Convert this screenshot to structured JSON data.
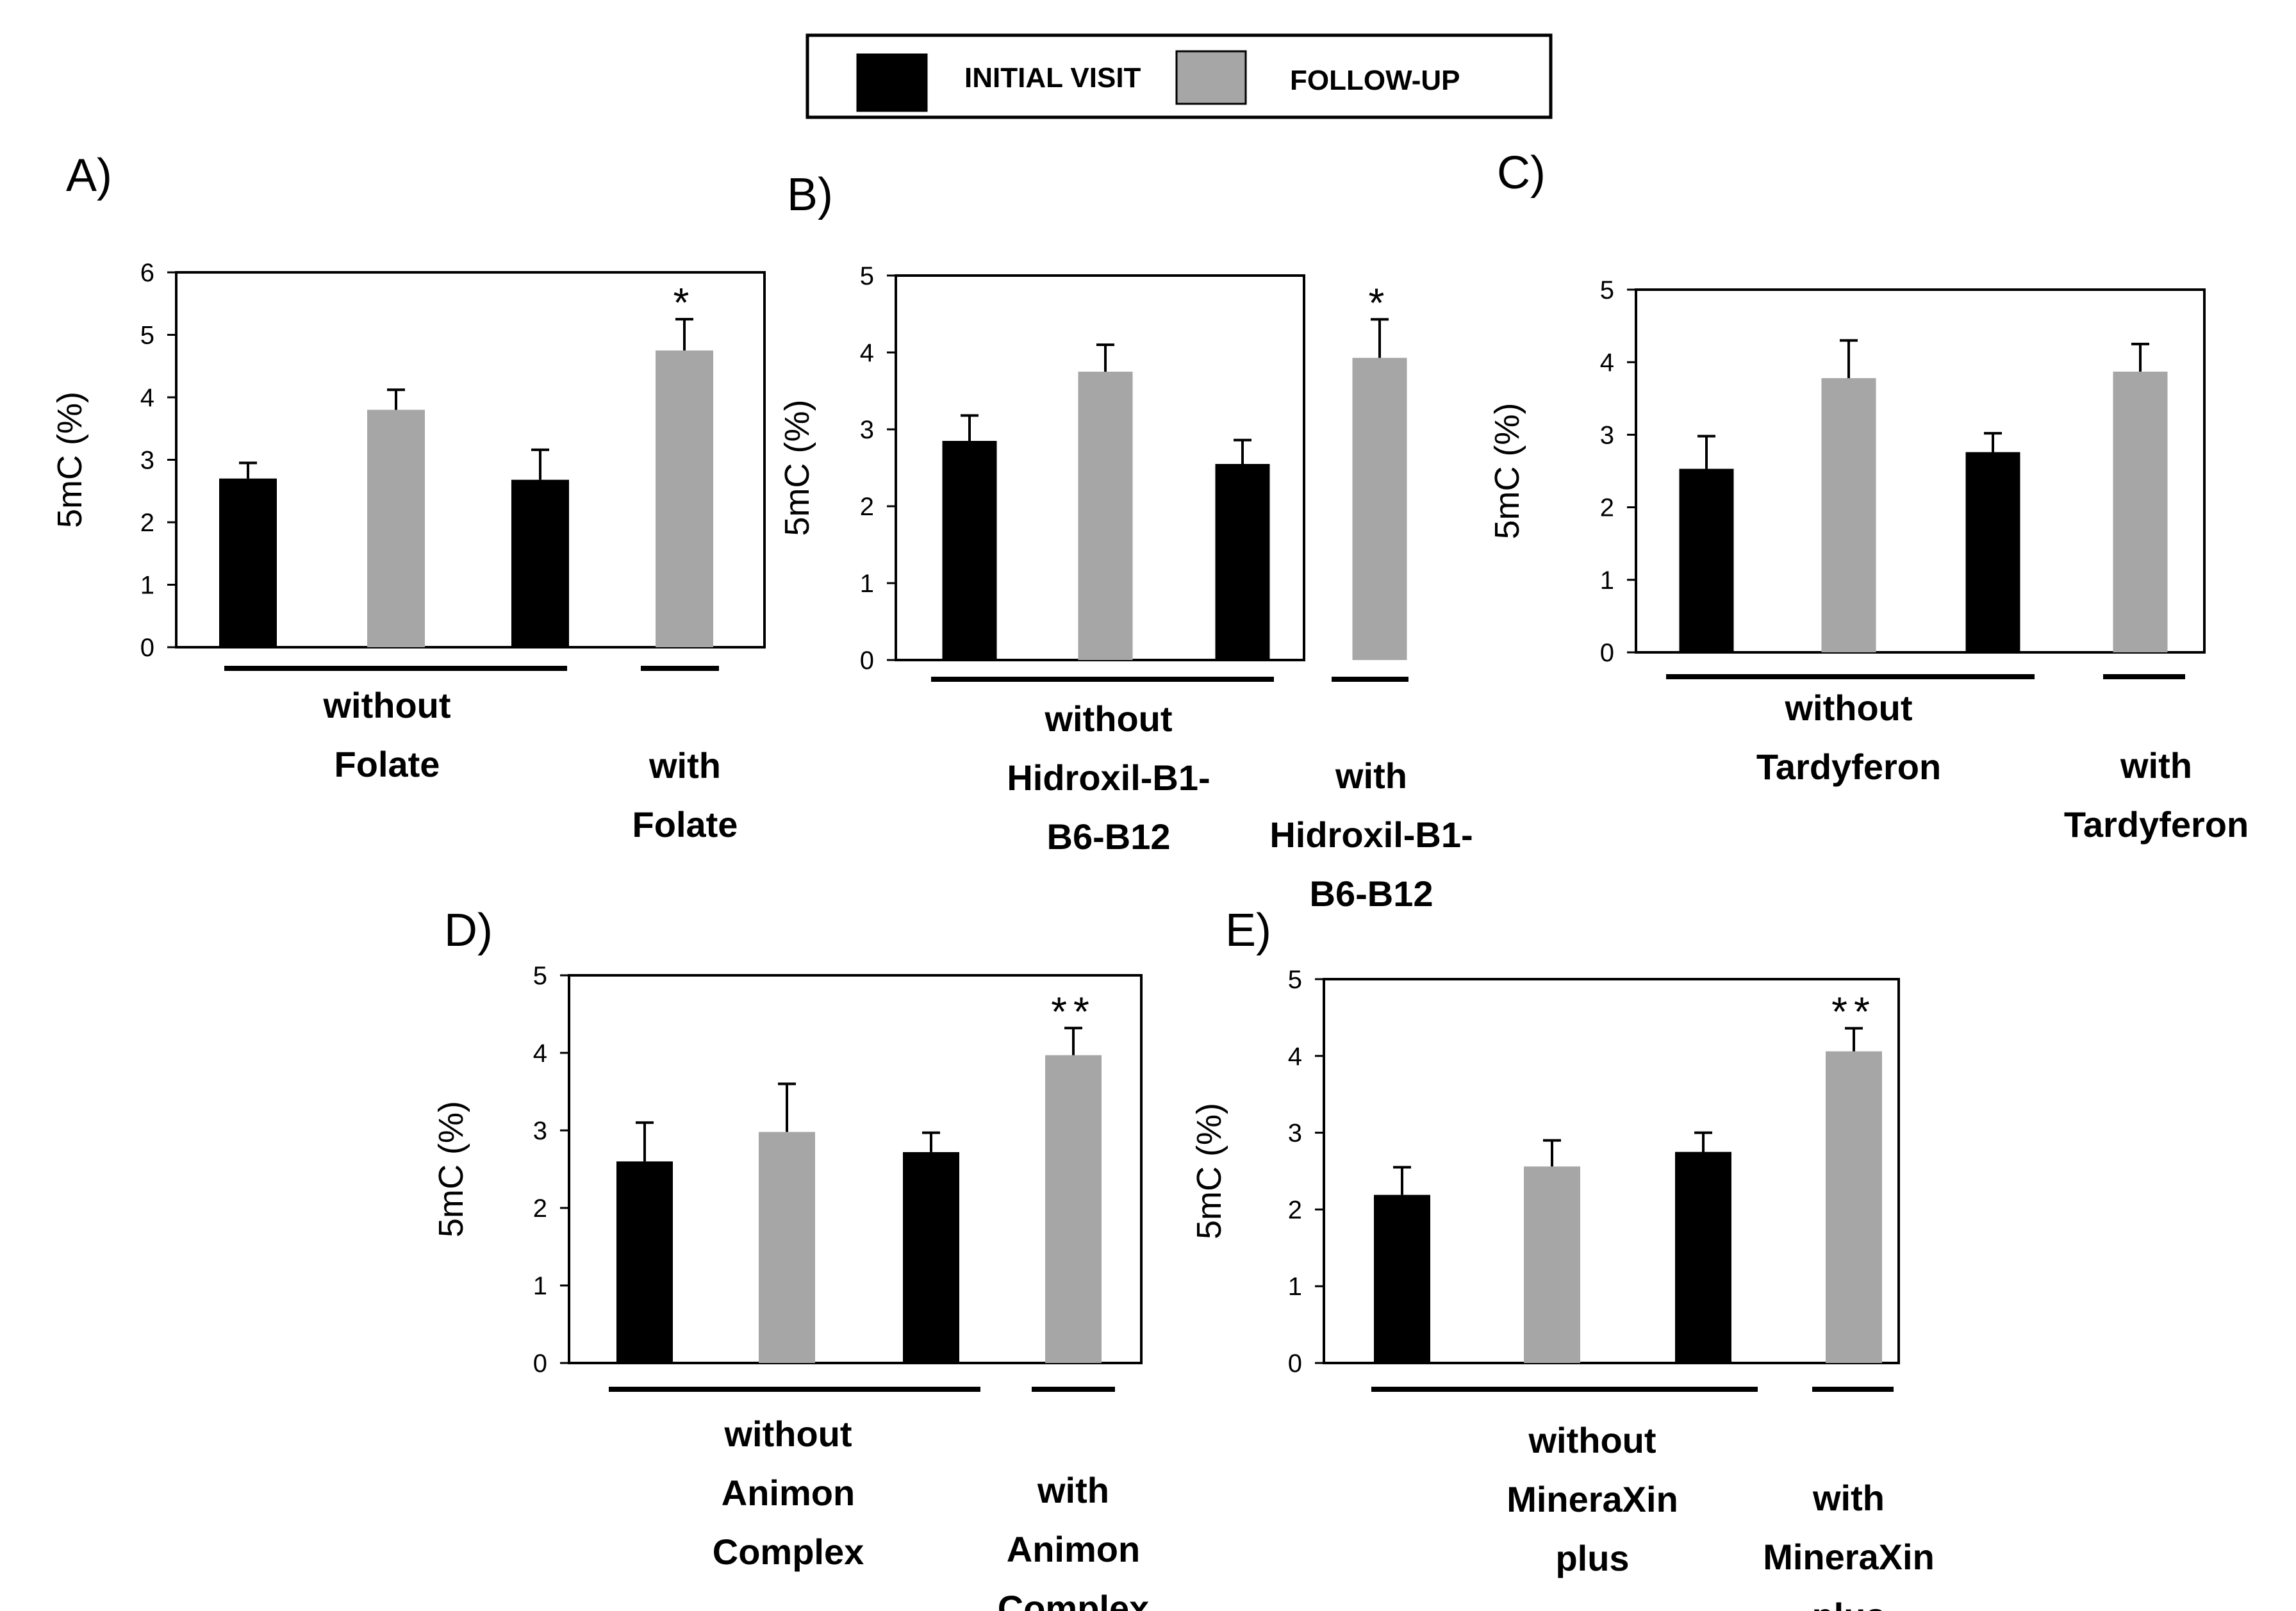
{
  "legend": {
    "items": [
      {
        "label": "INITIAL VISIT",
        "color": "#000000"
      },
      {
        "label": "FOLLOW-UP",
        "color": "#a6a6a6"
      }
    ]
  },
  "colors": {
    "initial": "#000000",
    "followup": "#a6a6a6",
    "errorbar": "#000000"
  },
  "chart_data": [
    {
      "type": "bar",
      "panel": "A)",
      "ylabel": "5mC (%)",
      "ylim": [
        0,
        6
      ],
      "yticks": [
        "0",
        "1",
        "2",
        "3",
        "4",
        "5",
        "6"
      ],
      "bars": [
        {
          "series": "INITIAL VISIT",
          "value": 2.7,
          "error": 0.25,
          "sig": ""
        },
        {
          "series": "FOLLOW-UP",
          "value": 3.8,
          "error": 0.32,
          "sig": ""
        },
        {
          "series": "INITIAL VISIT",
          "value": 2.68,
          "error": 0.48,
          "sig": ""
        },
        {
          "series": "FOLLOW-UP",
          "value": 4.75,
          "error": 0.5,
          "sig": "*"
        }
      ],
      "groups": [
        {
          "lines": [
            "without",
            "Folate"
          ],
          "bars": [
            0,
            2
          ]
        },
        {
          "lines": [
            "with",
            "Folate"
          ],
          "bars": [
            3,
            3
          ]
        }
      ]
    },
    {
      "type": "bar",
      "panel": "B)",
      "ylabel": "5mC (%)",
      "ylim": [
        0,
        5
      ],
      "yticks": [
        "0",
        "1",
        "2",
        "3",
        "4",
        "5"
      ],
      "bars": [
        {
          "series": "INITIAL VISIT",
          "value": 2.85,
          "error": 0.33,
          "sig": ""
        },
        {
          "series": "FOLLOW-UP",
          "value": 3.75,
          "error": 0.35,
          "sig": ""
        },
        {
          "series": "INITIAL VISIT",
          "value": 2.55,
          "error": 0.31,
          "sig": ""
        },
        {
          "series": "FOLLOW-UP",
          "value": 3.93,
          "error": 0.5,
          "sig": "*"
        }
      ],
      "groups": [
        {
          "lines": [
            "without",
            "Hidroxil-B1-",
            "B6-B12"
          ],
          "bars": [
            0,
            2
          ]
        },
        {
          "lines": [
            "with",
            "Hidroxil-B1-",
            "B6-B12"
          ],
          "bars": [
            3,
            3
          ]
        }
      ]
    },
    {
      "type": "bar",
      "panel": "C)",
      "ylabel": "5mC (%)",
      "ylim": [
        0,
        5
      ],
      "yticks": [
        "0",
        "1",
        "2",
        "3",
        "4",
        "5"
      ],
      "bars": [
        {
          "series": "INITIAL VISIT",
          "value": 2.53,
          "error": 0.45,
          "sig": ""
        },
        {
          "series": "FOLLOW-UP",
          "value": 3.78,
          "error": 0.52,
          "sig": ""
        },
        {
          "series": "INITIAL VISIT",
          "value": 2.76,
          "error": 0.26,
          "sig": ""
        },
        {
          "series": "FOLLOW-UP",
          "value": 3.87,
          "error": 0.38,
          "sig": ""
        }
      ],
      "groups": [
        {
          "lines": [
            "without",
            "Tardyferon"
          ],
          "bars": [
            0,
            2
          ]
        },
        {
          "lines": [
            "with",
            "Tardyferon"
          ],
          "bars": [
            3,
            3
          ]
        }
      ]
    },
    {
      "type": "bar",
      "panel": "D)",
      "ylabel": "5mC (%)",
      "ylim": [
        0,
        5
      ],
      "yticks": [
        "0",
        "1",
        "2",
        "3",
        "4",
        "5"
      ],
      "bars": [
        {
          "series": "INITIAL VISIT",
          "value": 2.6,
          "error": 0.5,
          "sig": ""
        },
        {
          "series": "FOLLOW-UP",
          "value": 2.98,
          "error": 0.62,
          "sig": ""
        },
        {
          "series": "INITIAL VISIT",
          "value": 2.72,
          "error": 0.25,
          "sig": ""
        },
        {
          "series": "FOLLOW-UP",
          "value": 3.97,
          "error": 0.35,
          "sig": "**"
        }
      ],
      "groups": [
        {
          "lines": [
            "without",
            "Animon",
            "Complex"
          ],
          "bars": [
            0,
            2
          ]
        },
        {
          "lines": [
            "with",
            "Animon",
            "Complex"
          ],
          "bars": [
            3,
            3
          ]
        }
      ]
    },
    {
      "type": "bar",
      "panel": "E)",
      "ylabel": "5mC (%)",
      "ylim": [
        0,
        5
      ],
      "yticks": [
        "0",
        "1",
        "2",
        "3",
        "4",
        "5"
      ],
      "bars": [
        {
          "series": "INITIAL VISIT",
          "value": 2.19,
          "error": 0.36,
          "sig": ""
        },
        {
          "series": "FOLLOW-UP",
          "value": 2.56,
          "error": 0.34,
          "sig": ""
        },
        {
          "series": "INITIAL VISIT",
          "value": 2.75,
          "error": 0.25,
          "sig": ""
        },
        {
          "series": "FOLLOW-UP",
          "value": 4.06,
          "error": 0.3,
          "sig": "**"
        }
      ],
      "groups": [
        {
          "lines": [
            "without",
            "MineraXin",
            "plus"
          ],
          "bars": [
            0,
            2
          ]
        },
        {
          "lines": [
            "with",
            "MineraXin",
            "plus"
          ],
          "bars": [
            3,
            3
          ]
        }
      ]
    }
  ]
}
